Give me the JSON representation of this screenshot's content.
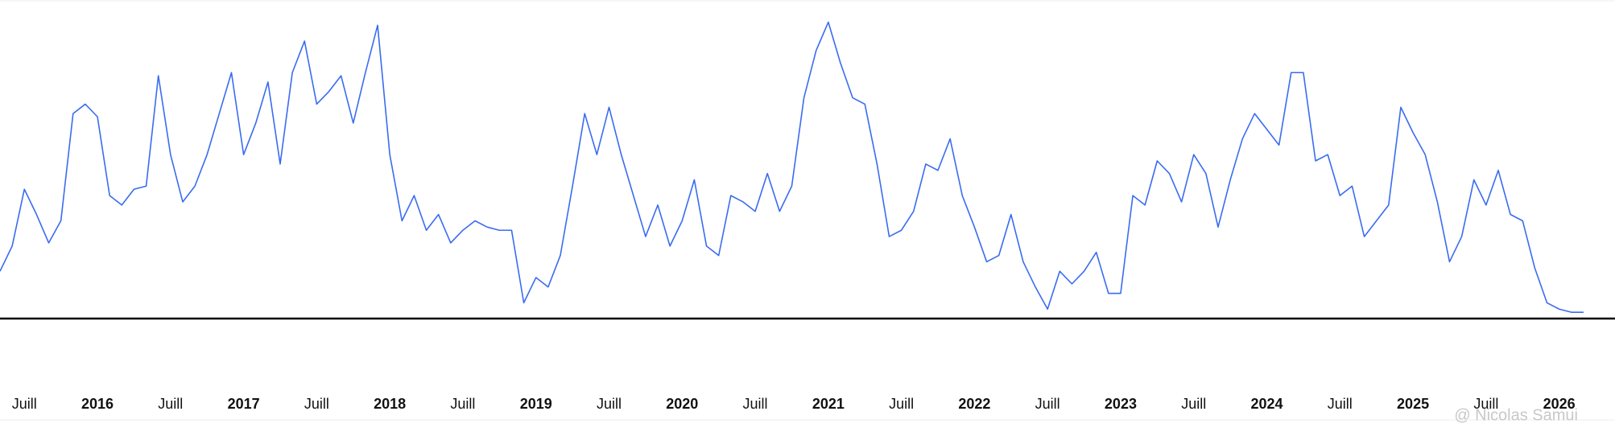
{
  "chart_data": {
    "type": "line",
    "categories": [
      null,
      null,
      null,
      null,
      null,
      null,
      null,
      null,
      null,
      null,
      null,
      null,
      null,
      null,
      null,
      null,
      null,
      null,
      null,
      null,
      null,
      null,
      null,
      null,
      null,
      null,
      null,
      null,
      null,
      null,
      null,
      null,
      null,
      null,
      null,
      null,
      null,
      null,
      null,
      null,
      null,
      null,
      null,
      null,
      null,
      null,
      null,
      null,
      null,
      null,
      null,
      null,
      null,
      null,
      null,
      null,
      null,
      null,
      null,
      null,
      null,
      null,
      null,
      null,
      null,
      null,
      null,
      null,
      null,
      null,
      null,
      null,
      null,
      null,
      null,
      null,
      null,
      null,
      null,
      null,
      null,
      null,
      null,
      null,
      null,
      null,
      null,
      null,
      null,
      null,
      null,
      null,
      null,
      null,
      null,
      null,
      null,
      null,
      null,
      null,
      null,
      null,
      null,
      null,
      null,
      null,
      null,
      null,
      null,
      null,
      null,
      null,
      null,
      null,
      null,
      null,
      null,
      null,
      null,
      null,
      null,
      null,
      null,
      null,
      null,
      null,
      null,
      null,
      null,
      null,
      null
    ],
    "series": [
      {
        "color": "#3a6cf0",
        "values": [
          15,
          23,
          41,
          33,
          24,
          31,
          65,
          68,
          64,
          39,
          36,
          41,
          42,
          77,
          52,
          37,
          42,
          52,
          65,
          78,
          52,
          62,
          75,
          49,
          78,
          88,
          68,
          72,
          77,
          62,
          78,
          93,
          52,
          31,
          39,
          28,
          33,
          24,
          28,
          31,
          29,
          28,
          28,
          5,
          13,
          10,
          20,
          42,
          65,
          52,
          67,
          52,
          39,
          26,
          36,
          23,
          31,
          44,
          23,
          20,
          39,
          37,
          34,
          46,
          34,
          42,
          70,
          85,
          94,
          81,
          70,
          68,
          49,
          26,
          28,
          34,
          49,
          47,
          57,
          39,
          29,
          18,
          20,
          33,
          18,
          10,
          3,
          15,
          11,
          15,
          21,
          8,
          8,
          39,
          36,
          50,
          46,
          37,
          52,
          46,
          29,
          44,
          57,
          65,
          60,
          55,
          78,
          78,
          50,
          52,
          39,
          42,
          26,
          31,
          36,
          67,
          59,
          52,
          37,
          18,
          26,
          44,
          36,
          47,
          33,
          31,
          16,
          5,
          3,
          2,
          2
        ]
      }
    ],
    "ylim": [
      0,
      100
    ],
    "xticks": [
      {
        "value": 2,
        "label": "Juill"
      },
      {
        "value": 8,
        "label": "2016"
      },
      {
        "value": 14,
        "label": "Juill"
      },
      {
        "value": 20,
        "label": "2017"
      },
      {
        "value": 26,
        "label": "Juill"
      },
      {
        "value": 32,
        "label": "2018"
      },
      {
        "value": 38,
        "label": "Juill"
      },
      {
        "value": 44,
        "label": "2019"
      },
      {
        "value": 50,
        "label": "Juill"
      },
      {
        "value": 56,
        "label": "2020"
      },
      {
        "value": 62,
        "label": "Juill"
      },
      {
        "value": 68,
        "label": "2021"
      },
      {
        "value": 74,
        "label": "Juill"
      },
      {
        "value": 80,
        "label": "2022"
      },
      {
        "value": 86,
        "label": "Juill"
      },
      {
        "value": 92,
        "label": "2023"
      },
      {
        "value": 98,
        "label": "Juill"
      },
      {
        "value": 104,
        "label": "2024"
      },
      {
        "value": 110,
        "label": "Juill"
      },
      {
        "value": 116,
        "label": "2025"
      },
      {
        "value": 122,
        "label": "Juill"
      },
      {
        "value": 128,
        "label": "2026"
      }
    ],
    "watermark": "@ Nicolas Samui"
  }
}
